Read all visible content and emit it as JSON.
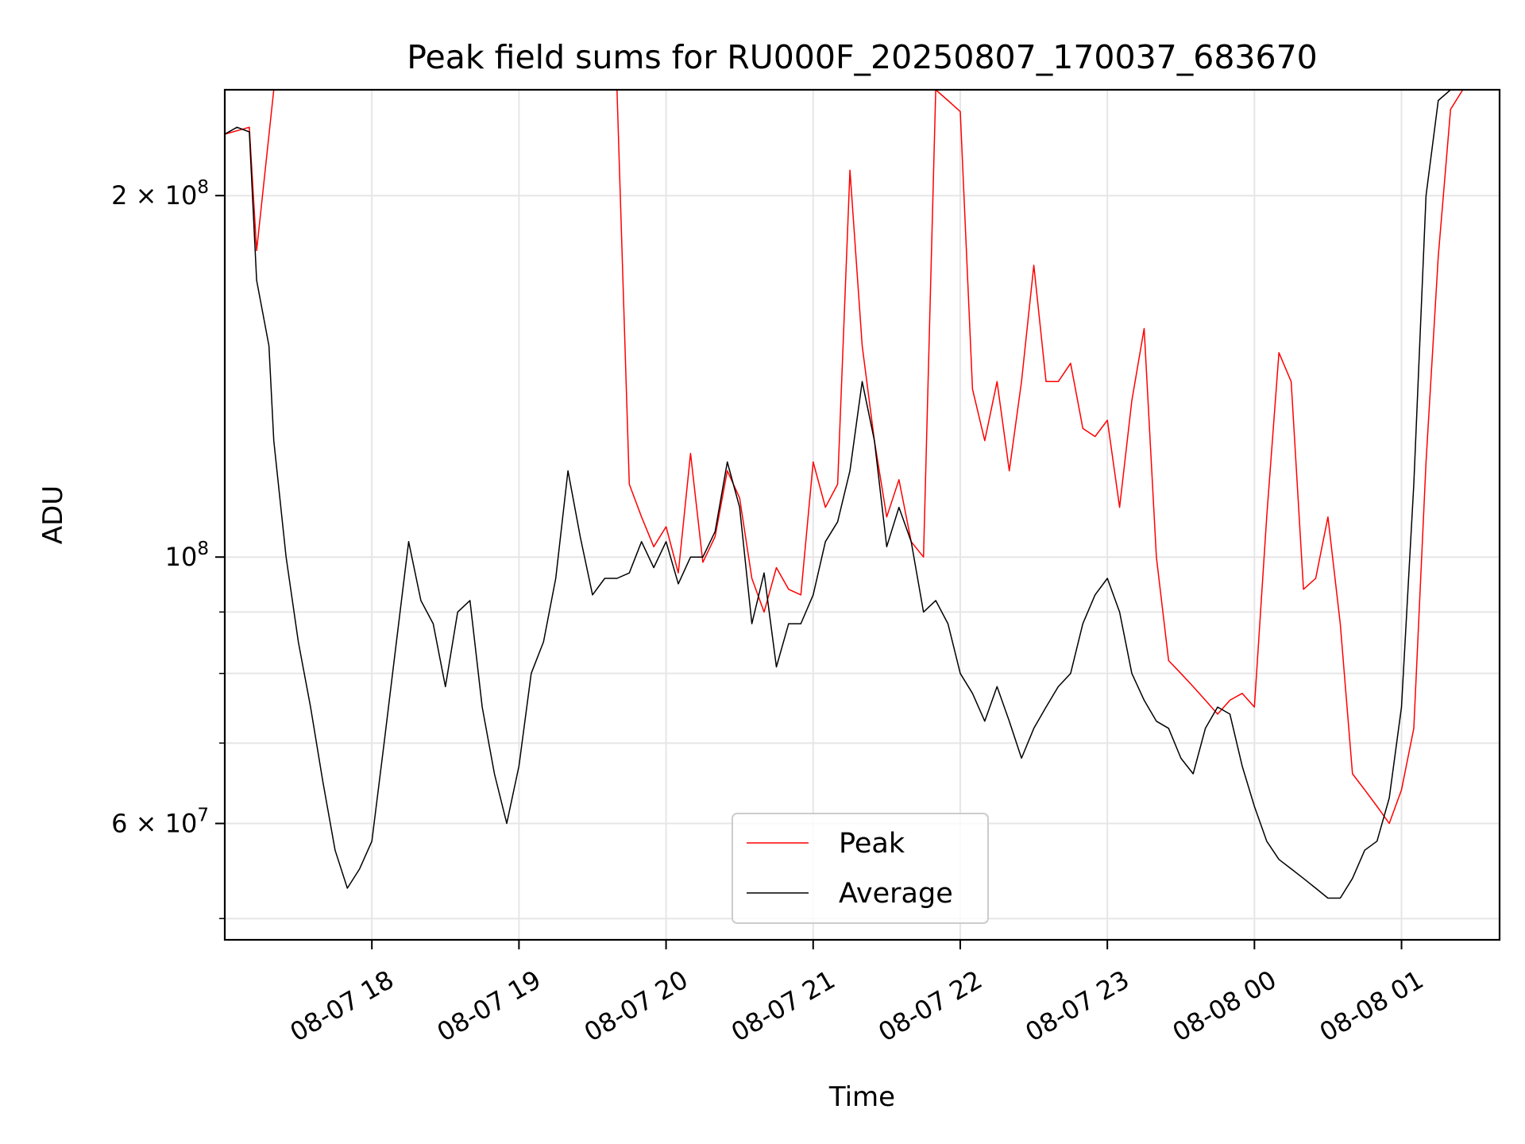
{
  "chart_data": {
    "type": "line",
    "title": "Peak field sums for RU000F_20250807_170037_683670",
    "xlabel": "Time",
    "ylabel": "ADU",
    "y_scale": "log",
    "ylim": [
      48000000,
      245000000
    ],
    "xlim": [
      "2025-08-07 17:00",
      "2025-08-08 01:40"
    ],
    "x_ticks": [
      "2025-08-07 18:00",
      "2025-08-07 19:00",
      "2025-08-07 20:00",
      "2025-08-07 21:00",
      "2025-08-07 22:00",
      "2025-08-07 23:00",
      "2025-08-08 00:00",
      "2025-08-08 01:00"
    ],
    "x_tick_labels": [
      "08-07 18",
      "08-07 19",
      "08-07 20",
      "08-07 21",
      "08-07 22",
      "08-07 23",
      "08-08 00",
      "08-08 01"
    ],
    "y_ticks": [
      100000000,
      200000000,
      60000000
    ],
    "y_tick_labels": [
      {
        "base": "10",
        "sup": "8"
      },
      {
        "base": "2 × 10",
        "sup": "8"
      },
      {
        "base": "6 × 10",
        "sup": "7"
      }
    ],
    "grid": true,
    "legend_position": "lower-center",
    "series": [
      {
        "name": "Peak",
        "color": "#ff0000",
        "x": [
          "2025-08-07 17:00",
          "2025-08-07 17:10",
          "2025-08-07 17:13",
          "2025-08-07 17:20",
          "2025-08-07 17:25",
          "2025-08-07 17:30",
          "2025-08-07 17:35",
          "2025-08-07 17:40",
          "2025-08-07 17:45",
          "2025-08-07 17:50",
          "2025-08-07 17:55",
          "2025-08-07 18:00",
          "2025-08-07 18:05",
          "2025-08-07 18:10",
          "2025-08-07 18:15",
          "2025-08-07 18:20",
          "2025-08-07 18:25",
          "2025-08-07 18:30",
          "2025-08-07 18:35",
          "2025-08-07 18:40",
          "2025-08-07 18:45",
          "2025-08-07 18:50",
          "2025-08-07 18:55",
          "2025-08-07 19:00",
          "2025-08-07 19:05",
          "2025-08-07 19:10",
          "2025-08-07 19:15",
          "2025-08-07 19:20",
          "2025-08-07 19:25",
          "2025-08-07 19:30",
          "2025-08-07 19:35",
          "2025-08-07 19:40",
          "2025-08-07 19:45",
          "2025-08-07 19:50",
          "2025-08-07 19:55",
          "2025-08-07 20:00",
          "2025-08-07 20:05",
          "2025-08-07 20:10",
          "2025-08-07 20:15",
          "2025-08-07 20:20",
          "2025-08-07 20:25",
          "2025-08-07 20:30",
          "2025-08-07 20:35",
          "2025-08-07 20:40",
          "2025-08-07 20:45",
          "2025-08-07 20:50",
          "2025-08-07 20:55",
          "2025-08-07 21:00",
          "2025-08-07 21:05",
          "2025-08-07 21:10",
          "2025-08-07 21:15",
          "2025-08-07 21:20",
          "2025-08-07 21:25",
          "2025-08-07 21:30",
          "2025-08-07 21:35",
          "2025-08-07 21:40",
          "2025-08-07 21:45",
          "2025-08-07 21:50",
          "2025-08-07 21:55",
          "2025-08-07 22:00",
          "2025-08-07 22:05",
          "2025-08-07 22:10",
          "2025-08-07 22:15",
          "2025-08-07 22:20",
          "2025-08-07 22:25",
          "2025-08-07 22:30",
          "2025-08-07 22:35",
          "2025-08-07 22:40",
          "2025-08-07 22:45",
          "2025-08-07 22:50",
          "2025-08-07 22:55",
          "2025-08-07 23:00",
          "2025-08-07 23:05",
          "2025-08-07 23:10",
          "2025-08-07 23:15",
          "2025-08-07 23:20",
          "2025-08-07 23:25",
          "2025-08-07 23:30",
          "2025-08-07 23:35",
          "2025-08-07 23:40",
          "2025-08-07 23:45",
          "2025-08-07 23:50",
          "2025-08-07 23:55",
          "2025-08-08 00:00",
          "2025-08-08 00:05",
          "2025-08-08 00:10",
          "2025-08-08 00:15",
          "2025-08-08 00:20",
          "2025-08-08 00:25",
          "2025-08-08 00:30",
          "2025-08-08 00:35",
          "2025-08-08 00:40",
          "2025-08-08 00:45",
          "2025-08-08 00:50",
          "2025-08-08 00:55",
          "2025-08-08 01:00",
          "2025-08-08 01:05",
          "2025-08-08 01:10",
          "2025-08-08 01:15",
          "2025-08-08 01:20",
          "2025-08-08 01:25",
          "2025-08-08 01:30",
          "2025-08-08 01:35",
          "2025-08-08 01:40"
        ],
        "values": [
          225000000,
          228000000,
          180000000,
          245000000,
          245000000,
          245000000,
          245000000,
          245000000,
          245000000,
          245000000,
          245000000,
          245000000,
          245000000,
          245000000,
          245000000,
          245000000,
          245000000,
          245000000,
          245000000,
          245000000,
          245000000,
          245000000,
          245000000,
          245000000,
          245000000,
          245000000,
          245000000,
          245000000,
          245000000,
          245000000,
          245000000,
          245000000,
          115000000,
          108000000,
          102000000,
          106000000,
          97000000,
          122000000,
          99000000,
          104000000,
          118000000,
          112000000,
          96000000,
          90000000,
          98000000,
          94000000,
          93000000,
          120000000,
          110000000,
          115000000,
          210000000,
          150000000,
          125000000,
          108000000,
          116000000,
          103000000,
          100000000,
          245000000,
          240000000,
          235000000,
          138000000,
          125000000,
          140000000,
          118000000,
          140000000,
          175000000,
          140000000,
          140000000,
          145000000,
          128000000,
          126000000,
          130000000,
          110000000,
          135000000,
          155000000,
          100000000,
          82000000,
          80000000,
          78000000,
          76000000,
          74000000,
          76000000,
          77000000,
          75000000,
          108000000,
          148000000,
          140000000,
          94000000,
          96000000,
          108000000,
          88000000,
          66000000,
          64000000,
          62000000,
          60000000,
          64000000,
          72000000,
          120000000,
          178000000,
          236000000,
          245000000,
          245000000,
          245000000,
          245000000
        ]
      },
      {
        "name": "Average",
        "color": "#000000",
        "x": [
          "2025-08-07 17:00",
          "2025-08-07 17:05",
          "2025-08-07 17:10",
          "2025-08-07 17:13",
          "2025-08-07 17:18",
          "2025-08-07 17:20",
          "2025-08-07 17:25",
          "2025-08-07 17:30",
          "2025-08-07 17:35",
          "2025-08-07 17:40",
          "2025-08-07 17:45",
          "2025-08-07 17:50",
          "2025-08-07 17:55",
          "2025-08-07 18:00",
          "2025-08-07 18:05",
          "2025-08-07 18:10",
          "2025-08-07 18:15",
          "2025-08-07 18:20",
          "2025-08-07 18:25",
          "2025-08-07 18:30",
          "2025-08-07 18:35",
          "2025-08-07 18:40",
          "2025-08-07 18:45",
          "2025-08-07 18:50",
          "2025-08-07 18:55",
          "2025-08-07 19:00",
          "2025-08-07 19:05",
          "2025-08-07 19:10",
          "2025-08-07 19:15",
          "2025-08-07 19:20",
          "2025-08-07 19:25",
          "2025-08-07 19:30",
          "2025-08-07 19:35",
          "2025-08-07 19:40",
          "2025-08-07 19:45",
          "2025-08-07 19:50",
          "2025-08-07 19:55",
          "2025-08-07 20:00",
          "2025-08-07 20:05",
          "2025-08-07 20:10",
          "2025-08-07 20:15",
          "2025-08-07 20:20",
          "2025-08-07 20:25",
          "2025-08-07 20:30",
          "2025-08-07 20:35",
          "2025-08-07 20:40",
          "2025-08-07 20:45",
          "2025-08-07 20:50",
          "2025-08-07 20:55",
          "2025-08-07 21:00",
          "2025-08-07 21:05",
          "2025-08-07 21:10",
          "2025-08-07 21:15",
          "2025-08-07 21:20",
          "2025-08-07 21:25",
          "2025-08-07 21:30",
          "2025-08-07 21:35",
          "2025-08-07 21:40",
          "2025-08-07 21:45",
          "2025-08-07 21:50",
          "2025-08-07 21:55",
          "2025-08-07 22:00",
          "2025-08-07 22:05",
          "2025-08-07 22:10",
          "2025-08-07 22:15",
          "2025-08-07 22:20",
          "2025-08-07 22:25",
          "2025-08-07 22:30",
          "2025-08-07 22:35",
          "2025-08-07 22:40",
          "2025-08-07 22:45",
          "2025-08-07 22:50",
          "2025-08-07 22:55",
          "2025-08-07 23:00",
          "2025-08-07 23:05",
          "2025-08-07 23:10",
          "2025-08-07 23:15",
          "2025-08-07 23:20",
          "2025-08-07 23:25",
          "2025-08-07 23:30",
          "2025-08-07 23:35",
          "2025-08-07 23:40",
          "2025-08-07 23:45",
          "2025-08-07 23:50",
          "2025-08-07 23:55",
          "2025-08-08 00:00",
          "2025-08-08 00:05",
          "2025-08-08 00:10",
          "2025-08-08 00:15",
          "2025-08-08 00:20",
          "2025-08-08 00:25",
          "2025-08-08 00:30",
          "2025-08-08 00:35",
          "2025-08-08 00:40",
          "2025-08-08 00:45",
          "2025-08-08 00:50",
          "2025-08-08 00:55",
          "2025-08-08 01:00",
          "2025-08-08 01:05",
          "2025-08-08 01:10",
          "2025-08-08 01:15",
          "2025-08-08 01:20",
          "2025-08-08 01:25"
        ],
        "values": [
          225000000,
          228000000,
          226000000,
          170000000,
          150000000,
          125000000,
          100000000,
          85000000,
          75000000,
          65000000,
          57000000,
          53000000,
          55000000,
          58000000,
          70000000,
          85000000,
          103000000,
          92000000,
          88000000,
          78000000,
          90000000,
          92000000,
          75000000,
          66000000,
          60000000,
          67000000,
          80000000,
          85000000,
          96000000,
          118000000,
          104000000,
          93000000,
          96000000,
          96000000,
          97000000,
          103000000,
          98000000,
          103000000,
          95000000,
          100000000,
          100000000,
          105000000,
          120000000,
          110000000,
          88000000,
          97000000,
          81000000,
          88000000,
          88000000,
          93000000,
          103000000,
          107000000,
          118000000,
          140000000,
          125000000,
          102000000,
          110000000,
          103000000,
          90000000,
          92000000,
          88000000,
          80000000,
          77000000,
          73000000,
          78000000,
          73000000,
          68000000,
          72000000,
          75000000,
          78000000,
          80000000,
          88000000,
          93000000,
          96000000,
          90000000,
          80000000,
          76000000,
          73000000,
          72000000,
          68000000,
          66000000,
          72000000,
          75000000,
          74000000,
          67000000,
          62000000,
          58000000,
          56000000,
          55000000,
          54000000,
          53000000,
          52000000,
          52000000,
          54000000,
          57000000,
          58000000,
          63000000,
          75000000,
          115000000,
          200000000,
          240000000,
          245000000,
          245000000
        ]
      }
    ]
  }
}
